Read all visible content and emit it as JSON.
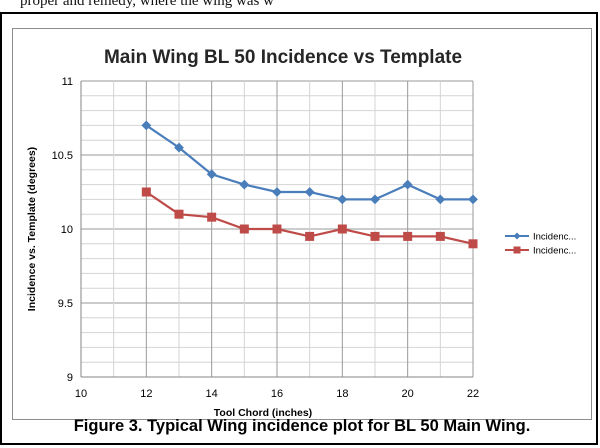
{
  "page_fragment": "proper and remedy, where the wing was w",
  "figure_caption": "Figure 3. Typical Wing incidence plot for BL 50 Main Wing.",
  "chart_data": {
    "type": "line",
    "title": "Main Wing BL 50 Incidence vs Template",
    "xlabel": "Tool Chord (inches)",
    "ylabel": "Incidence vs. Template (degrees)",
    "xlim": [
      10,
      22
    ],
    "ylim": [
      9,
      11
    ],
    "x_ticks": [
      "10",
      "12",
      "14",
      "16",
      "18",
      "20",
      "22"
    ],
    "y_ticks": [
      "9",
      "9.5",
      "10",
      "10.5",
      "11"
    ],
    "grid": true,
    "legend_position": "right",
    "x": [
      12,
      13,
      14,
      15,
      16,
      17,
      18,
      19,
      20,
      21,
      22
    ],
    "series": [
      {
        "name": "Incidenc...",
        "color": "#4a7ebb",
        "marker": "diamond",
        "values": [
          10.7,
          10.55,
          10.37,
          10.3,
          10.25,
          10.25,
          10.2,
          10.2,
          10.3,
          10.2,
          10.2
        ]
      },
      {
        "name": "Incidenc...",
        "color": "#be4b48",
        "marker": "square",
        "values": [
          10.25,
          10.1,
          10.08,
          10.0,
          10.0,
          9.95,
          10.0,
          9.95,
          9.95,
          9.95,
          9.9
        ]
      }
    ]
  }
}
